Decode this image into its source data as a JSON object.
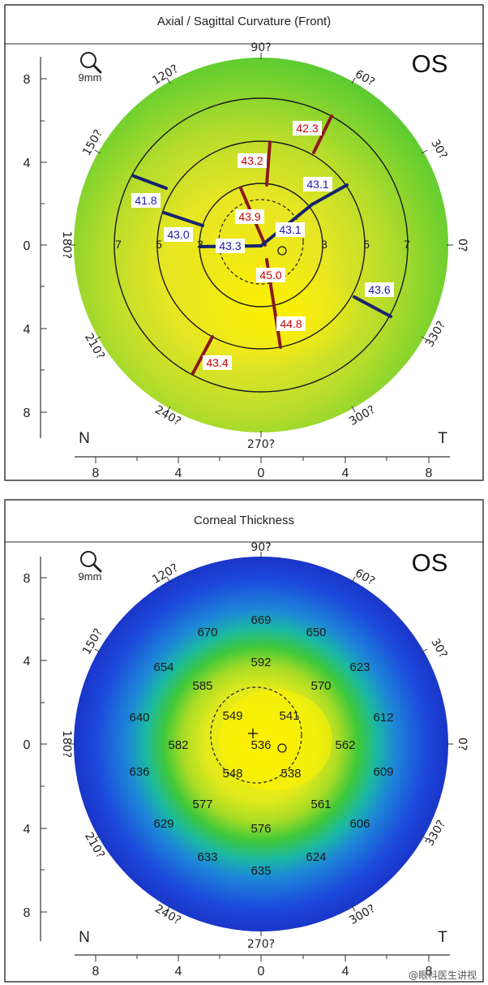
{
  "colors": {
    "frame": "#2a2a2a",
    "tick_text": "#222222",
    "red_bar": "#8b1a1a",
    "blue_bar": "#16246e",
    "red_label": "#cc0000",
    "blue_label": "#1a1aa8"
  },
  "panels": [
    {
      "id": "curvature",
      "title": "Axial / Sagittal Curvature (Front)",
      "eye": "OS",
      "zoom_label": "9mm",
      "zoom_icon": "magnifier-icon",
      "nasal": "N",
      "temporal": "T",
      "angles": [
        "90?",
        "60?",
        "30?",
        "0?",
        "330?",
        "300?",
        "270?",
        "240?",
        "210?",
        "180?",
        "150?",
        "120?"
      ],
      "y_ticks": [
        "8",
        "4",
        "0",
        "4",
        "8"
      ],
      "x_ticks": [
        "8",
        "4",
        "0",
        "4",
        "8"
      ],
      "ring_labels": {
        "left": [
          "7",
          "5",
          "3"
        ],
        "right": [
          "3",
          "5",
          "7"
        ]
      },
      "values": [
        {
          "text": "42.3",
          "kind": "steep"
        },
        {
          "text": "43.2",
          "kind": "steep"
        },
        {
          "text": "43.1",
          "kind": "flat"
        },
        {
          "text": "41.8",
          "kind": "flat"
        },
        {
          "text": "43.9",
          "kind": "steep"
        },
        {
          "text": "43.1",
          "kind": "flat"
        },
        {
          "text": "43.0",
          "kind": "flat"
        },
        {
          "text": "43.3",
          "kind": "flat"
        },
        {
          "text": "45.0",
          "kind": "steep"
        },
        {
          "text": "43.6",
          "kind": "flat"
        },
        {
          "text": "44.8",
          "kind": "steep"
        },
        {
          "text": "43.4",
          "kind": "steep"
        }
      ]
    },
    {
      "id": "thickness",
      "title": "Corneal Thickness",
      "eye": "OS",
      "zoom_label": "9mm",
      "zoom_icon": "magnifier-icon",
      "nasal": "N",
      "temporal": "T",
      "angles": [
        "90?",
        "60?",
        "30?",
        "0?",
        "330?",
        "300?",
        "270?",
        "240?",
        "210?",
        "180?",
        "150?",
        "120?"
      ],
      "y_ticks": [
        "8",
        "4",
        "0",
        "4",
        "8"
      ],
      "x_ticks": [
        "8",
        "4",
        "0",
        "4",
        "8"
      ],
      "values": [
        {
          "text": "669"
        },
        {
          "text": "670"
        },
        {
          "text": "650"
        },
        {
          "text": "654"
        },
        {
          "text": "592"
        },
        {
          "text": "623"
        },
        {
          "text": "585"
        },
        {
          "text": "570"
        },
        {
          "text": "640"
        },
        {
          "text": "549"
        },
        {
          "text": "541"
        },
        {
          "text": "612"
        },
        {
          "text": "582"
        },
        {
          "text": "536"
        },
        {
          "text": "562"
        },
        {
          "text": "636"
        },
        {
          "text": "548"
        },
        {
          "text": "538"
        },
        {
          "text": "609"
        },
        {
          "text": "577"
        },
        {
          "text": "561"
        },
        {
          "text": "629"
        },
        {
          "text": "576"
        },
        {
          "text": "606"
        },
        {
          "text": "633"
        },
        {
          "text": "624"
        },
        {
          "text": "635"
        }
      ]
    }
  ],
  "watermark": "@眼科医生讲视"
}
